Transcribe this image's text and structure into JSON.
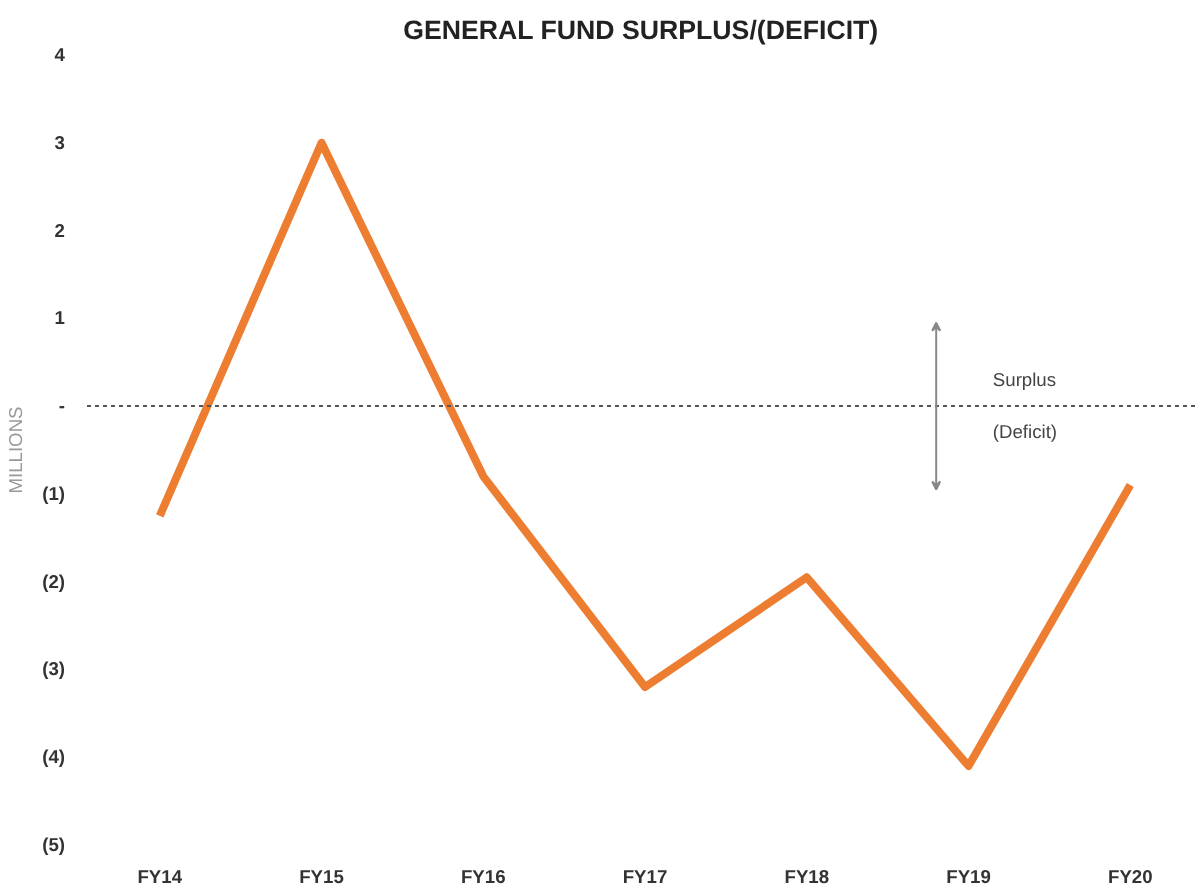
{
  "chart_data": {
    "type": "line",
    "title": "GENERAL FUND SURPLUS/(DEFICIT)",
    "ylabel": "MILLIONS",
    "categories": [
      "FY14",
      "FY15",
      "FY16",
      "FY17",
      "FY18",
      "FY19",
      "FY20"
    ],
    "series": [
      {
        "color": "#ed7d31",
        "values": [
          -1.25,
          3.0,
          -0.8,
          -3.2,
          -1.95,
          -4.1,
          -0.9
        ]
      }
    ],
    "ylim": [
      -5,
      4
    ],
    "yticks": [
      4,
      3,
      2,
      1,
      {
        "value": 0,
        "label": "-"
      },
      {
        "value": -1,
        "label": "(1)"
      },
      {
        "value": -2,
        "label": "(2)"
      },
      {
        "value": -3,
        "label": "(3)"
      },
      {
        "value": -4,
        "label": "(4)"
      },
      {
        "value": -5,
        "label": "(5)"
      }
    ],
    "ref_lines": [
      {
        "axis": "y",
        "value": 0,
        "color": "#555555",
        "line_style": "dotted"
      }
    ],
    "annotations": [
      "Surplus",
      "(Deficit)"
    ],
    "grid": false,
    "marker": "none",
    "line_style": "solid"
  }
}
